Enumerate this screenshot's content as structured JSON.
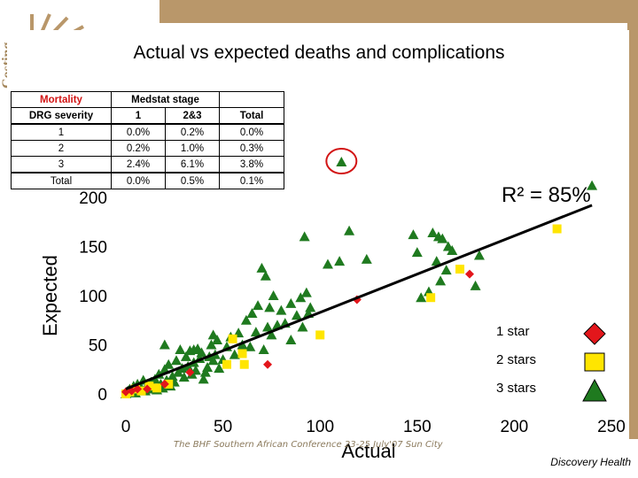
{
  "side_text": "Costing",
  "table": {
    "header1": [
      "Mortality",
      "Medstat stage",
      "",
      ""
    ],
    "header2": [
      "DRG severity",
      "1",
      "2&3",
      "Total"
    ],
    "rows": [
      [
        "1",
        "0.0%",
        "0.2%",
        "0.0%"
      ],
      [
        "2",
        "0.2%",
        "1.0%",
        "0.3%"
      ],
      [
        "3",
        "2.4%",
        "6.1%",
        "3.8%"
      ],
      [
        "Total",
        "0.0%",
        "0.5%",
        "0.1%"
      ]
    ]
  },
  "legend": {
    "items": [
      {
        "label": "1 star",
        "shape": "diamond",
        "color": "#e3161b"
      },
      {
        "label": "2 stars",
        "shape": "square",
        "color": "#ffe500"
      },
      {
        "label": "3 stars",
        "shape": "triangle",
        "color": "#1f7a1f"
      }
    ]
  },
  "footer": {
    "conference": "The BHF Southern African Conference 23-25 July'07 Sun City",
    "brand": "Discovery Health"
  },
  "colors": {
    "band": "#b9976a",
    "highlight_circle": "#d21414",
    "trendline": "#000000"
  },
  "chart_data": {
    "type": "scatter",
    "title": "Actual vs expected deaths and complications",
    "xlabel": "Actual",
    "ylabel": "Expected",
    "xlim": [
      0,
      250
    ],
    "ylim": [
      0,
      200
    ],
    "xticks": [
      0,
      50,
      100,
      150,
      200,
      250
    ],
    "yticks": [
      0,
      50,
      100,
      150,
      200
    ],
    "annotation": "R² = 85%",
    "trendline": {
      "x": [
        0,
        240
      ],
      "y": [
        5,
        192
      ]
    },
    "highlight": {
      "x": 111,
      "y": 236
    },
    "series": [
      {
        "name": "1 star",
        "marker": "diamond",
        "color": "#e3161b",
        "points": [
          [
            0,
            2
          ],
          [
            3,
            3
          ],
          [
            6,
            5
          ],
          [
            11,
            5
          ],
          [
            20,
            10
          ],
          [
            33,
            22
          ],
          [
            73,
            30
          ],
          [
            119,
            96
          ],
          [
            177,
            122
          ]
        ]
      },
      {
        "name": "2 stars",
        "marker": "square",
        "color": "#ffe500",
        "points": [
          [
            0,
            0
          ],
          [
            2,
            2
          ],
          [
            5,
            5
          ],
          [
            8,
            3
          ],
          [
            12,
            8
          ],
          [
            16,
            6
          ],
          [
            22,
            10
          ],
          [
            52,
            30
          ],
          [
            55,
            56
          ],
          [
            60,
            41
          ],
          [
            61,
            30
          ],
          [
            100,
            60
          ],
          [
            157,
            98
          ],
          [
            172,
            127
          ],
          [
            222,
            168
          ]
        ]
      },
      {
        "name": "3 stars",
        "marker": "triangle",
        "color": "#1f7a1f",
        "points": [
          [
            0,
            0
          ],
          [
            1,
            3
          ],
          [
            2,
            5
          ],
          [
            3,
            2
          ],
          [
            4,
            8
          ],
          [
            5,
            1
          ],
          [
            6,
            10
          ],
          [
            7,
            4
          ],
          [
            8,
            6
          ],
          [
            9,
            14
          ],
          [
            10,
            3
          ],
          [
            11,
            9
          ],
          [
            12,
            5
          ],
          [
            13,
            12
          ],
          [
            14,
            7
          ],
          [
            15,
            15
          ],
          [
            16,
            4
          ],
          [
            17,
            20
          ],
          [
            18,
            10
          ],
          [
            19,
            6
          ],
          [
            20,
            25
          ],
          [
            21,
            14
          ],
          [
            22,
            30
          ],
          [
            23,
            8
          ],
          [
            24,
            18
          ],
          [
            25,
            12
          ],
          [
            26,
            34
          ],
          [
            27,
            22
          ],
          [
            28,
            45
          ],
          [
            29,
            26
          ],
          [
            30,
            17
          ],
          [
            31,
            38
          ],
          [
            32,
            28
          ],
          [
            33,
            44
          ],
          [
            34,
            20
          ],
          [
            35,
            32
          ],
          [
            36,
            24
          ],
          [
            37,
            46
          ],
          [
            38,
            36
          ],
          [
            39,
            42
          ],
          [
            40,
            15
          ],
          [
            41,
            22
          ],
          [
            42,
            27
          ],
          [
            43,
            38
          ],
          [
            44,
            50
          ],
          [
            45,
            34
          ],
          [
            46,
            40
          ],
          [
            47,
            55
          ],
          [
            48,
            26
          ],
          [
            50,
            35
          ],
          [
            52,
            48
          ],
          [
            54,
            58
          ],
          [
            56,
            40
          ],
          [
            58,
            62
          ],
          [
            60,
            50
          ],
          [
            62,
            75
          ],
          [
            64,
            48
          ],
          [
            65,
            82
          ],
          [
            67,
            63
          ],
          [
            68,
            90
          ],
          [
            70,
            128
          ],
          [
            71,
            45
          ],
          [
            72,
            120
          ],
          [
            73,
            68
          ],
          [
            74,
            88
          ],
          [
            76,
            100
          ],
          [
            78,
            70
          ],
          [
            80,
            85
          ],
          [
            82,
            72
          ],
          [
            85,
            92
          ],
          [
            88,
            80
          ],
          [
            90,
            98
          ],
          [
            91,
            68
          ],
          [
            92,
            160
          ],
          [
            93,
            103
          ],
          [
            94,
            82
          ],
          [
            95,
            88
          ],
          [
            104,
            132
          ],
          [
            110,
            135
          ],
          [
            115,
            166
          ],
          [
            124,
            137
          ],
          [
            148,
            162
          ],
          [
            150,
            144
          ],
          [
            152,
            98
          ],
          [
            156,
            104
          ],
          [
            158,
            164
          ],
          [
            160,
            135
          ],
          [
            161,
            160
          ],
          [
            162,
            115
          ],
          [
            163,
            158
          ],
          [
            165,
            126
          ],
          [
            166,
            150
          ],
          [
            168,
            146
          ],
          [
            180,
            110
          ],
          [
            182,
            141
          ],
          [
            240,
            212
          ],
          [
            20,
            50
          ],
          [
            35,
            45
          ],
          [
            45,
            60
          ],
          [
            75,
            60
          ],
          [
            85,
            55
          ]
        ]
      }
    ]
  }
}
